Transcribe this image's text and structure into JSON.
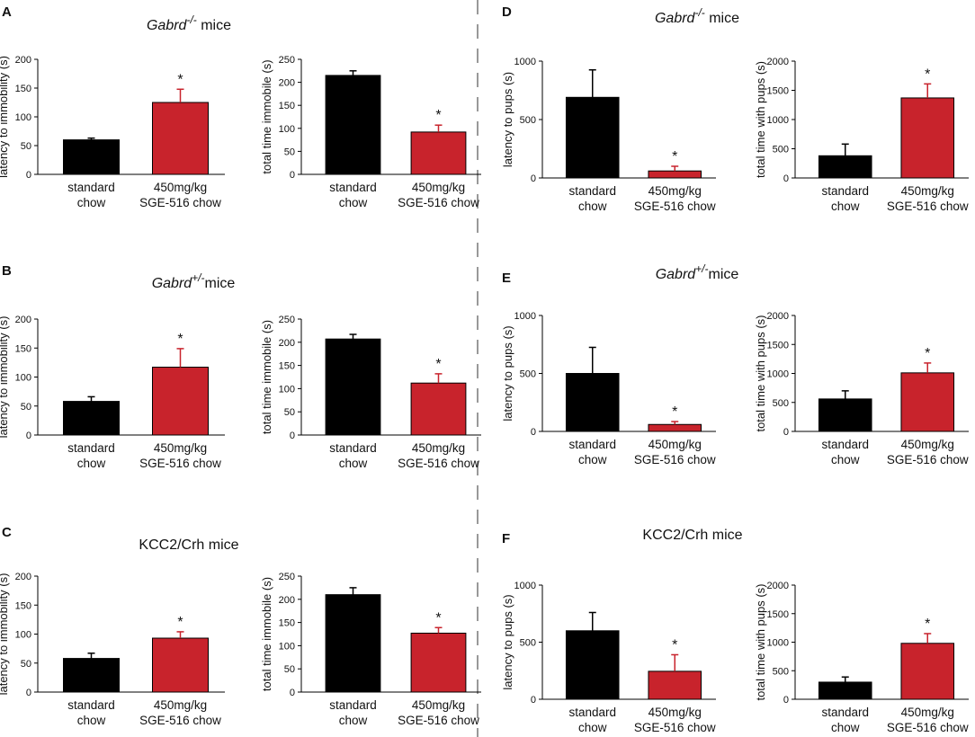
{
  "colors": {
    "control": "#000000",
    "treated": "#c8232c",
    "divider": "#999999",
    "axis": "#000000"
  },
  "panels": [
    {
      "letter": "A",
      "title_prefix": "Gabrd",
      "title_sup": "-/-",
      "title_suffix": " mice"
    },
    {
      "letter": "B",
      "title_prefix": "Gabrd",
      "title_sup": "+/-",
      "title_suffix": "mice"
    },
    {
      "letter": "C",
      "title_prefix": "KCC2/Crh mice",
      "title_sup": "",
      "title_suffix": ""
    },
    {
      "letter": "D",
      "title_prefix": "Gabrd",
      "title_sup": "-/-",
      "title_suffix": " mice"
    },
    {
      "letter": "E",
      "title_prefix": "Gabrd",
      "title_sup": "+/-",
      "title_suffix": "mice"
    },
    {
      "letter": "F",
      "title_prefix": "KCC2/Crh mice",
      "title_sup": "",
      "title_suffix": ""
    }
  ],
  "chart_data": [
    {
      "id": "A1",
      "panel": "A",
      "type": "bar",
      "ylabel": "latency to immobility (s)",
      "ylim": [
        0,
        200
      ],
      "yticks": [
        0,
        50,
        100,
        150,
        200
      ],
      "categories": [
        [
          "standard",
          "chow"
        ],
        [
          "450mg/kg",
          "SGE-516 chow"
        ]
      ],
      "values": [
        60,
        125
      ],
      "errors": [
        3,
        23
      ],
      "significance": [
        "",
        "*"
      ]
    },
    {
      "id": "A2",
      "panel": "A",
      "type": "bar",
      "ylabel": "total time immobile (s)",
      "ylim": [
        0,
        250
      ],
      "yticks": [
        0,
        50,
        100,
        150,
        200,
        250
      ],
      "categories": [
        [
          "standard",
          "chow"
        ],
        [
          "450mg/kg",
          "SGE-516 chow"
        ]
      ],
      "values": [
        215,
        92
      ],
      "errors": [
        10,
        15
      ],
      "significance": [
        "",
        "*"
      ]
    },
    {
      "id": "B1",
      "panel": "B",
      "type": "bar",
      "ylabel": "latency to immobility (s)",
      "ylim": [
        0,
        200
      ],
      "yticks": [
        0,
        50,
        100,
        150,
        200
      ],
      "categories": [
        [
          "standard",
          "chow"
        ],
        [
          "450mg/kg",
          "SGE-516 chow"
        ]
      ],
      "values": [
        58,
        117
      ],
      "errors": [
        8,
        32
      ],
      "significance": [
        "",
        "*"
      ]
    },
    {
      "id": "B2",
      "panel": "B",
      "type": "bar",
      "ylabel": "total time immobile (s)",
      "ylim": [
        0,
        250
      ],
      "yticks": [
        0,
        50,
        100,
        150,
        200,
        250
      ],
      "categories": [
        [
          "standard",
          "chow"
        ],
        [
          "450mg/kg",
          "SGE-516 chow"
        ]
      ],
      "values": [
        207,
        112
      ],
      "errors": [
        10,
        20
      ],
      "significance": [
        "",
        "*"
      ]
    },
    {
      "id": "C1",
      "panel": "C",
      "type": "bar",
      "ylabel": "latency to immobility (s)",
      "ylim": [
        0,
        200
      ],
      "yticks": [
        0,
        50,
        100,
        150,
        200
      ],
      "categories": [
        [
          "standard",
          "chow"
        ],
        [
          "450mg/kg",
          "SGE-516 chow"
        ]
      ],
      "values": [
        58,
        93
      ],
      "errors": [
        9,
        11
      ],
      "significance": [
        "",
        "*"
      ]
    },
    {
      "id": "C2",
      "panel": "C",
      "type": "bar",
      "ylabel": "total time immobile (s)",
      "ylim": [
        0,
        250
      ],
      "yticks": [
        0,
        50,
        100,
        150,
        200,
        250
      ],
      "categories": [
        [
          "standard",
          "chow"
        ],
        [
          "450mg/kg",
          "SGE-516 chow"
        ]
      ],
      "values": [
        210,
        127
      ],
      "errors": [
        15,
        12
      ],
      "significance": [
        "",
        "*"
      ]
    },
    {
      "id": "D1",
      "panel": "D",
      "type": "bar",
      "ylabel": "latency to pups (s)",
      "ylim": [
        0,
        1000
      ],
      "yticks": [
        0,
        500,
        1000
      ],
      "categories": [
        [
          "standard",
          "chow"
        ],
        [
          "450mg/kg",
          "SGE-516 chow"
        ]
      ],
      "values": [
        690,
        60
      ],
      "errors": [
        235,
        40
      ],
      "significance": [
        "",
        "*"
      ]
    },
    {
      "id": "D2",
      "panel": "D",
      "type": "bar",
      "ylabel": "total time with pups (s)",
      "ylim": [
        0,
        2000
      ],
      "yticks": [
        0,
        500,
        1000,
        1500,
        2000
      ],
      "categories": [
        [
          "standard",
          "chow"
        ],
        [
          "450mg/kg",
          "SGE-516 chow"
        ]
      ],
      "values": [
        380,
        1370
      ],
      "errors": [
        200,
        240
      ],
      "significance": [
        "",
        "*"
      ]
    },
    {
      "id": "E1",
      "panel": "E",
      "type": "bar",
      "ylabel": "latency to pups (s)",
      "ylim": [
        0,
        1000
      ],
      "yticks": [
        0,
        500,
        1000
      ],
      "categories": [
        [
          "standard",
          "chow"
        ],
        [
          "450mg/kg",
          "SGE-516 chow"
        ]
      ],
      "values": [
        500,
        60
      ],
      "errors": [
        225,
        25
      ],
      "significance": [
        "",
        "*"
      ]
    },
    {
      "id": "E2",
      "panel": "E",
      "type": "bar",
      "ylabel": "total time with pups (s)",
      "ylim": [
        0,
        2000
      ],
      "yticks": [
        0,
        500,
        1000,
        1500,
        2000
      ],
      "categories": [
        [
          "standard",
          "chow"
        ],
        [
          "450mg/kg",
          "SGE-516 chow"
        ]
      ],
      "values": [
        560,
        1010
      ],
      "errors": [
        140,
        170
      ],
      "significance": [
        "",
        "*"
      ]
    },
    {
      "id": "F1",
      "panel": "F",
      "type": "bar",
      "ylabel": "latency to pups (s)",
      "ylim": [
        0,
        1000
      ],
      "yticks": [
        0,
        500,
        1000
      ],
      "categories": [
        [
          "standard",
          "chow"
        ],
        [
          "450mg/kg",
          "SGE-516 chow"
        ]
      ],
      "values": [
        600,
        245
      ],
      "errors": [
        160,
        145
      ],
      "significance": [
        "",
        "*"
      ]
    },
    {
      "id": "F2",
      "panel": "F",
      "type": "bar",
      "ylabel": "total time with pups (s)",
      "ylim": [
        0,
        2000
      ],
      "yticks": [
        0,
        500,
        1000,
        1500,
        2000
      ],
      "categories": [
        [
          "standard",
          "chow"
        ],
        [
          "450mg/kg",
          "SGE-516 chow"
        ]
      ],
      "values": [
        300,
        980
      ],
      "errors": [
        90,
        170
      ],
      "significance": [
        "",
        "*"
      ]
    }
  ]
}
